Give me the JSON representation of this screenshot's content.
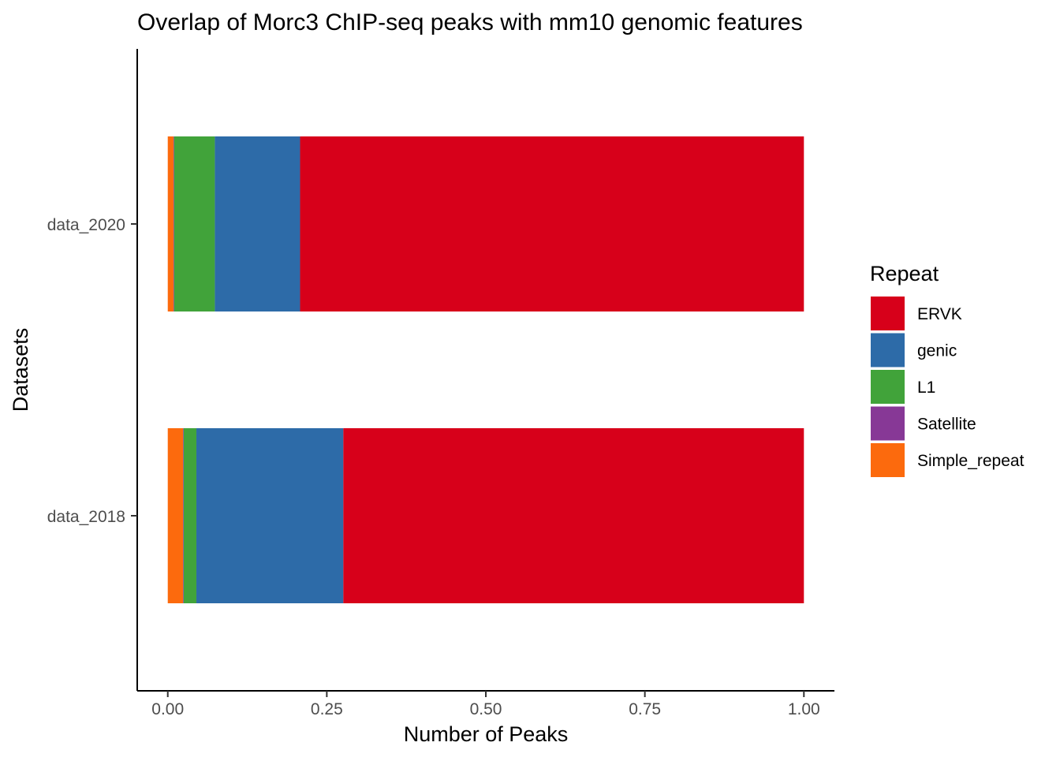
{
  "chart_data": {
    "type": "bar",
    "orientation": "horizontal",
    "stacked": true,
    "title": "Overlap of Morc3 ChIP-seq peaks with mm10 genomic features",
    "xlabel": "Number of Peaks",
    "ylabel": "Datasets",
    "xlim": [
      -0.048,
      1.048
    ],
    "x_ticks": [
      0,
      0.25,
      0.5,
      0.75,
      1
    ],
    "x_tick_labels": [
      "0.00",
      "0.25",
      "0.50",
      "0.75",
      "1.00"
    ],
    "categories": [
      "data_2020",
      "data_2018"
    ],
    "legend_title": "Repeat",
    "legend": [
      "ERVK",
      "genic",
      "L1",
      "Satellite",
      "Simple_repeat"
    ],
    "legend_position": "right",
    "grid": false,
    "stack_order": [
      "Simple_repeat",
      "Satellite",
      "L1",
      "genic",
      "ERVK"
    ],
    "series": [
      {
        "name": "ERVK",
        "color": "#D7001A",
        "values": [
          0.792,
          0.724
        ]
      },
      {
        "name": "genic",
        "color": "#2D6BA8",
        "values": [
          0.134,
          0.231
        ]
      },
      {
        "name": "L1",
        "color": "#41A33A",
        "values": [
          0.064,
          0.02
        ]
      },
      {
        "name": "Satellite",
        "color": "#873896",
        "values": [
          0.001,
          0.001
        ]
      },
      {
        "name": "Simple_repeat",
        "color": "#FC6A0D",
        "values": [
          0.009,
          0.024
        ]
      }
    ]
  }
}
